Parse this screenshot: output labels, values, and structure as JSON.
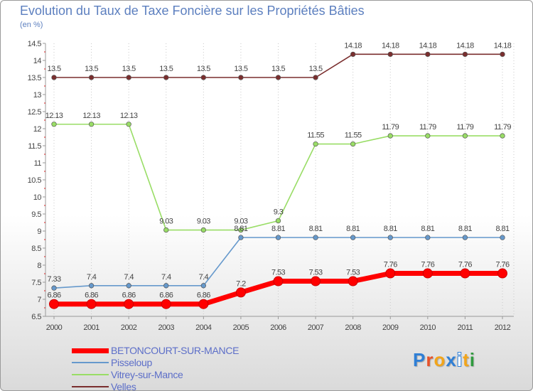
{
  "header": {
    "title": "Evolution du Taux de Taxe Foncière sur les Propriétés Bâties",
    "subtitle": "(en %)"
  },
  "logo": {
    "text": "Proxiti",
    "letter_colors": [
      "#2f7fd6",
      "#e8522a",
      "#f2a51b",
      "#2f7fd6",
      "#ffffff",
      "#f2a51b",
      "#2f9b3e"
    ]
  },
  "chart_data": {
    "type": "line",
    "title": "Evolution du Taux de Taxe Foncière sur les Propriétés Bâties",
    "ylabel": "(en %)",
    "xlabel": "",
    "categories": [
      "2000",
      "2001",
      "2002",
      "2003",
      "2004",
      "2005",
      "2006",
      "2007",
      "2008",
      "2009",
      "2010",
      "2011",
      "2012"
    ],
    "ylim": [
      6.5,
      14.5
    ],
    "yticks": [
      "6.5",
      "7",
      "7.5",
      "8",
      "8.5",
      "9",
      "9.5",
      "10",
      "10.5",
      "11",
      "11.5",
      "12",
      "12.5",
      "13",
      "13.5",
      "14",
      "14.5"
    ],
    "grid": "vertical dotted",
    "legend_position": "bottom-left",
    "series": [
      {
        "name": "Velles",
        "color": "#7a2e2e",
        "values": [
          13.5,
          13.5,
          13.5,
          13.5,
          13.5,
          13.5,
          13.5,
          13.5,
          14.18,
          14.18,
          14.18,
          14.18,
          14.18
        ],
        "labels": [
          "13.5",
          "13.5",
          "13.5",
          "13.5",
          "13.5",
          "13.5",
          "13.5",
          "13.5",
          "14.18",
          "14.18",
          "14.18",
          "14.18",
          "14.18"
        ]
      },
      {
        "name": "Vitrey-sur-Mance",
        "color": "#99dd66",
        "values": [
          12.13,
          12.13,
          12.13,
          9.03,
          9.03,
          9.03,
          9.3,
          11.55,
          11.55,
          11.79,
          11.79,
          11.79,
          11.79
        ],
        "labels": [
          "12.13",
          "12.13",
          "12.13",
          "9.03",
          "9.03",
          "9.03",
          "9.3",
          "11.55",
          "11.55",
          "11.79",
          "11.79",
          "11.79",
          "11.79"
        ]
      },
      {
        "name": "Pisseloup",
        "color": "#6699cc",
        "values": [
          7.33,
          7.4,
          7.4,
          7.4,
          7.4,
          8.81,
          8.81,
          8.81,
          8.81,
          8.81,
          8.81,
          8.81,
          8.81
        ],
        "labels": [
          "7.33",
          "7.4",
          "7.4",
          "7.4",
          "7.4",
          "8.81",
          "8.81",
          "8.81",
          "8.81",
          "8.81",
          "8.81",
          "8.81",
          "8.81"
        ]
      },
      {
        "name": "BETONCOURT-SUR-MANCE",
        "color": "#ff0000",
        "values": [
          6.86,
          6.86,
          6.86,
          6.86,
          6.86,
          7.2,
          7.53,
          7.53,
          7.53,
          7.76,
          7.76,
          7.76,
          7.76
        ],
        "labels": [
          "6.86",
          "6.86",
          "6.86",
          "6.86",
          "6.86",
          "7.2",
          "7.53",
          "7.53",
          "7.53",
          "7.76",
          "7.76",
          "7.76",
          "7.76"
        ]
      }
    ],
    "legend_order": [
      "BETONCOURT-SUR-MANCE",
      "Pisseloup",
      "Vitrey-sur-Mance",
      "Velles"
    ]
  }
}
